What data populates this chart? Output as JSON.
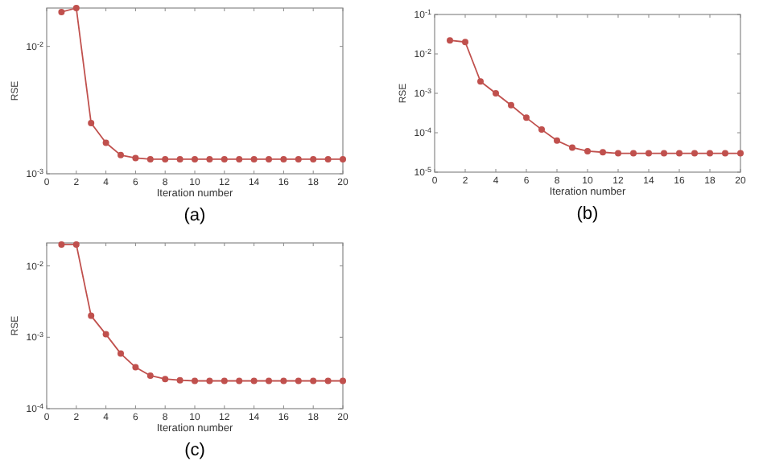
{
  "chart_data": [
    {
      "type": "line",
      "xlabel": "Iteration number",
      "ylabel": "RSE",
      "annotations": [
        "(a)"
      ],
      "log": "y",
      "marker": "circle",
      "line_style": "solid",
      "x": [
        1,
        2,
        3,
        4,
        5,
        6,
        7,
        8,
        9,
        10,
        11,
        12,
        13,
        14,
        15,
        16,
        17,
        18,
        19,
        20
      ],
      "series": [
        {
          "color": "#c0504d",
          "values": [
            0.0186,
            0.02,
            0.0025,
            0.00175,
            0.0014,
            0.00133,
            0.0013,
            0.0013,
            0.0013,
            0.0013,
            0.0013,
            0.0013,
            0.0013,
            0.0013,
            0.0013,
            0.0013,
            0.0013,
            0.0013,
            0.0013,
            0.0013
          ]
        }
      ],
      "xlim": [
        0,
        20
      ],
      "xticks": [
        0,
        2,
        4,
        6,
        8,
        10,
        12,
        14,
        16,
        18,
        20
      ],
      "ylim": [
        0.001,
        0.02
      ],
      "yticks": [
        {
          "value": 0.001,
          "label": "10$^{-3}$"
        },
        {
          "value": 0.01,
          "label": "10$^{-2}$"
        }
      ]
    },
    {
      "type": "line",
      "xlabel": "Iteration number",
      "ylabel": "RSE",
      "annotations": [
        "(b)"
      ],
      "log": "y",
      "marker": "circle",
      "line_style": "solid",
      "x": [
        1,
        2,
        3,
        4,
        5,
        6,
        7,
        8,
        9,
        10,
        11,
        12,
        13,
        14,
        15,
        16,
        17,
        18,
        19,
        20
      ],
      "series": [
        {
          "color": "#c0504d",
          "values": [
            0.022,
            0.02,
            0.002,
            0.001,
            0.0005,
            0.00024,
            0.00012,
            6.3e-05,
            4.2e-05,
            3.4e-05,
            3.2e-05,
            3e-05,
            3e-05,
            3e-05,
            3e-05,
            3e-05,
            3e-05,
            3e-05,
            3e-05,
            3e-05
          ]
        }
      ],
      "xlim": [
        0,
        20
      ],
      "xticks": [
        0,
        2,
        4,
        6,
        8,
        10,
        12,
        14,
        16,
        18,
        20
      ],
      "ylim": [
        1e-05,
        0.1
      ],
      "yticks": [
        {
          "value": 1e-05,
          "label": "10$^{-5}$"
        },
        {
          "value": 0.0001,
          "label": "10$^{-4}$"
        },
        {
          "value": 0.001,
          "label": "10$^{-3}$"
        },
        {
          "value": 0.01,
          "label": "10$^{-2}$"
        },
        {
          "value": 0.1,
          "label": "10$^{-1}$"
        }
      ]
    },
    {
      "type": "line",
      "xlabel": "Iteration number",
      "ylabel": "RSE",
      "annotations": [
        "(c)"
      ],
      "log": "y",
      "marker": "circle",
      "line_style": "solid",
      "x": [
        1,
        2,
        3,
        4,
        5,
        6,
        7,
        8,
        9,
        10,
        11,
        12,
        13,
        14,
        15,
        16,
        17,
        18,
        19,
        20
      ],
      "series": [
        {
          "color": "#c0504d",
          "values": [
            0.02,
            0.02,
            0.002,
            0.0011,
            0.00059,
            0.00038,
            0.00029,
            0.00026,
            0.00025,
            0.000245,
            0.000245,
            0.000245,
            0.000245,
            0.000245,
            0.000245,
            0.000245,
            0.000245,
            0.000245,
            0.000245,
            0.000245
          ]
        }
      ],
      "xlim": [
        0,
        20
      ],
      "xticks": [
        0,
        2,
        4,
        6,
        8,
        10,
        12,
        14,
        16,
        18,
        20
      ],
      "ylim": [
        0.0001,
        0.021
      ],
      "yticks": [
        {
          "value": 0.0001,
          "label": "10$^{-4}$"
        },
        {
          "value": 0.001,
          "label": "10$^{-3}$"
        },
        {
          "value": 0.01,
          "label": "10$^{-2}$"
        }
      ]
    }
  ]
}
